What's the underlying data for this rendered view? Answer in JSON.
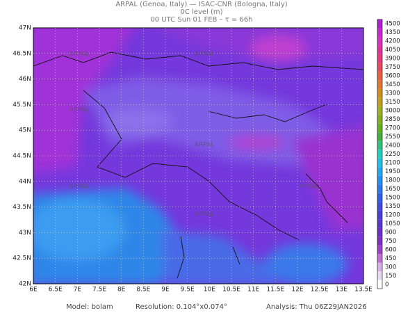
{
  "header": {
    "line1": "ARPAL (Genoa, Italy)  —  ISAC-CNR (Bologna, Italy)",
    "line2": "0C level (m)",
    "line3": "00 UTC Sun 01 FEB  –  τ = 66h"
  },
  "map": {
    "lat_labels": [
      "42N",
      "42.5N",
      "43N",
      "43.5N",
      "44N",
      "44.5N",
      "45N",
      "45.5N",
      "46N",
      "46.5N",
      "47N"
    ],
    "lon_labels": [
      "6E",
      "6.5E",
      "7E",
      "7.5E",
      "8E",
      "8.5E",
      "9E",
      "9.5E",
      "10E",
      "10.5E",
      "11E",
      "11.5E",
      "12E",
      "12.5E",
      "13E",
      "13.5E"
    ],
    "watermark": "ARPAL"
  },
  "colorbar": {
    "labels": [
      "0",
      "150",
      "300",
      "450",
      "600",
      "750",
      "900",
      "1050",
      "1200",
      "1350",
      "1500",
      "1650",
      "1800",
      "1950",
      "2100",
      "2250",
      "2400",
      "2550",
      "2700",
      "2850",
      "3000",
      "3150",
      "3300",
      "3450",
      "3600",
      "3750",
      "3900",
      "4050",
      "4200",
      "4350",
      "4500"
    ]
  },
  "footer": {
    "model": "Model: bolam",
    "resolution": "Resolution: 0.104°x0.074°",
    "analysis": "Analysis: Thu 06Z29JAN2026"
  }
}
